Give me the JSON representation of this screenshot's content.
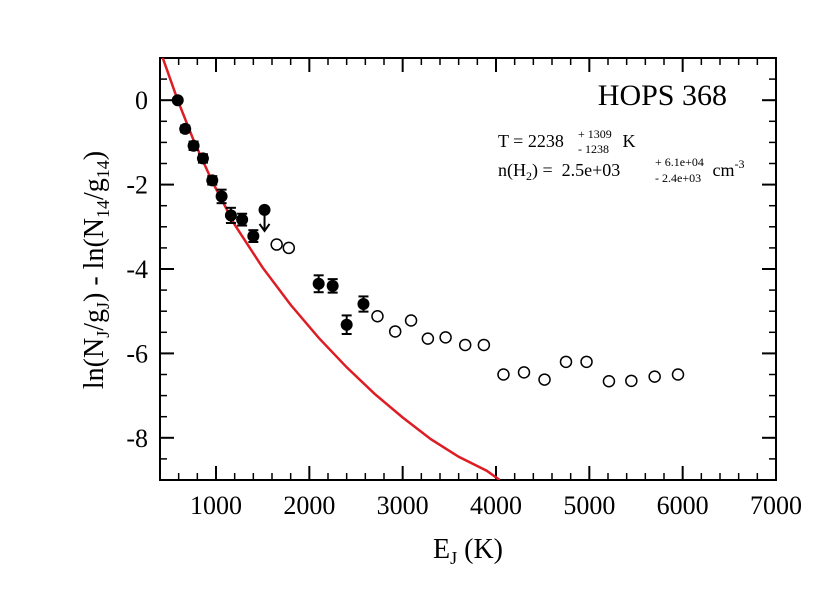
{
  "chart_data": {
    "type": "scatter",
    "title": "HOPS 368",
    "xlabel": {
      "main": "E",
      "sub": "J",
      "tail": " (K)"
    },
    "ylabel": {
      "p1": "ln(N",
      "s1": "J",
      "p2": "/g",
      "s2": "J",
      "p3": ") - ln(N",
      "s3": "14",
      "p4": "/g",
      "s4": "14",
      "p5": ")"
    },
    "xlim": [
      400,
      7000
    ],
    "ylim": [
      -9,
      1
    ],
    "x_ticks": [
      1000,
      2000,
      3000,
      4000,
      5000,
      6000,
      7000
    ],
    "x_tick_labels": [
      "1000",
      "2000",
      "3000",
      "4000",
      "5000",
      "6000",
      "7000"
    ],
    "y_ticks": [
      0,
      -2,
      -4,
      -6,
      -8
    ],
    "y_tick_labels": [
      "0",
      "-2",
      "-4",
      "-6",
      "-8"
    ],
    "annotation": {
      "t_prefix": "T = 2238",
      "t_sup": "+ 1309",
      "t_sub": "- 1238",
      "t_unit": " K",
      "n_prefix": "n(H",
      "n_h_sub": "2",
      "n_mid": ") =  2.5e+03",
      "n_sup": "+ 6.1e+04",
      "n_sub": "- 2.4e+03",
      "n_unit": " cm",
      "n_unit_sup": "-3"
    },
    "series": [
      {
        "marker": "filled-circle",
        "points": [
          {
            "x": 590,
            "y": 0.0,
            "err": 0.05
          },
          {
            "x": 670,
            "y": -0.68,
            "err": 0.08
          },
          {
            "x": 760,
            "y": -1.08,
            "err": 0.1
          },
          {
            "x": 860,
            "y": -1.38,
            "err": 0.1
          },
          {
            "x": 960,
            "y": -1.9,
            "err": 0.1
          },
          {
            "x": 1060,
            "y": -2.28,
            "err": 0.16
          },
          {
            "x": 1160,
            "y": -2.73,
            "err": 0.18
          },
          {
            "x": 1280,
            "y": -2.83,
            "err": 0.14
          },
          {
            "x": 1400,
            "y": -3.22,
            "err": 0.14
          },
          {
            "x": 2100,
            "y": -4.35,
            "err": 0.2
          },
          {
            "x": 2250,
            "y": -4.4,
            "err": 0.16
          },
          {
            "x": 2400,
            "y": -5.32,
            "err": 0.22
          },
          {
            "x": 2580,
            "y": -4.83,
            "err": 0.18
          }
        ]
      },
      {
        "marker": "upper-limit",
        "points": [
          {
            "x": 1520,
            "y": -2.6
          }
        ]
      },
      {
        "marker": "open-circle",
        "points": [
          {
            "x": 1650,
            "y": -3.42
          },
          {
            "x": 1780,
            "y": -3.5
          },
          {
            "x": 2730,
            "y": -5.12
          },
          {
            "x": 2920,
            "y": -5.48
          },
          {
            "x": 3090,
            "y": -5.22
          },
          {
            "x": 3270,
            "y": -5.65
          },
          {
            "x": 3460,
            "y": -5.62
          },
          {
            "x": 3670,
            "y": -5.8
          },
          {
            "x": 3870,
            "y": -5.8
          },
          {
            "x": 4080,
            "y": -6.5
          },
          {
            "x": 4300,
            "y": -6.45
          },
          {
            "x": 4520,
            "y": -6.62
          },
          {
            "x": 4750,
            "y": -6.2
          },
          {
            "x": 4970,
            "y": -6.2
          },
          {
            "x": 5210,
            "y": -6.66
          },
          {
            "x": 5450,
            "y": -6.65
          },
          {
            "x": 5700,
            "y": -6.55
          },
          {
            "x": 5950,
            "y": -6.5
          }
        ]
      }
    ],
    "fit_curve": {
      "color": "#dd1c24",
      "points": [
        [
          420,
          1.06
        ],
        [
          590,
          0.0
        ],
        [
          760,
          -0.95
        ],
        [
          960,
          -1.93
        ],
        [
          1200,
          -2.95
        ],
        [
          1500,
          -3.97
        ],
        [
          1800,
          -4.85
        ],
        [
          2100,
          -5.63
        ],
        [
          2400,
          -6.33
        ],
        [
          2700,
          -6.96
        ],
        [
          3000,
          -7.52
        ],
        [
          3300,
          -8.03
        ],
        [
          3600,
          -8.45
        ],
        [
          3900,
          -8.78
        ],
        [
          4040,
          -9.0
        ]
      ]
    }
  }
}
